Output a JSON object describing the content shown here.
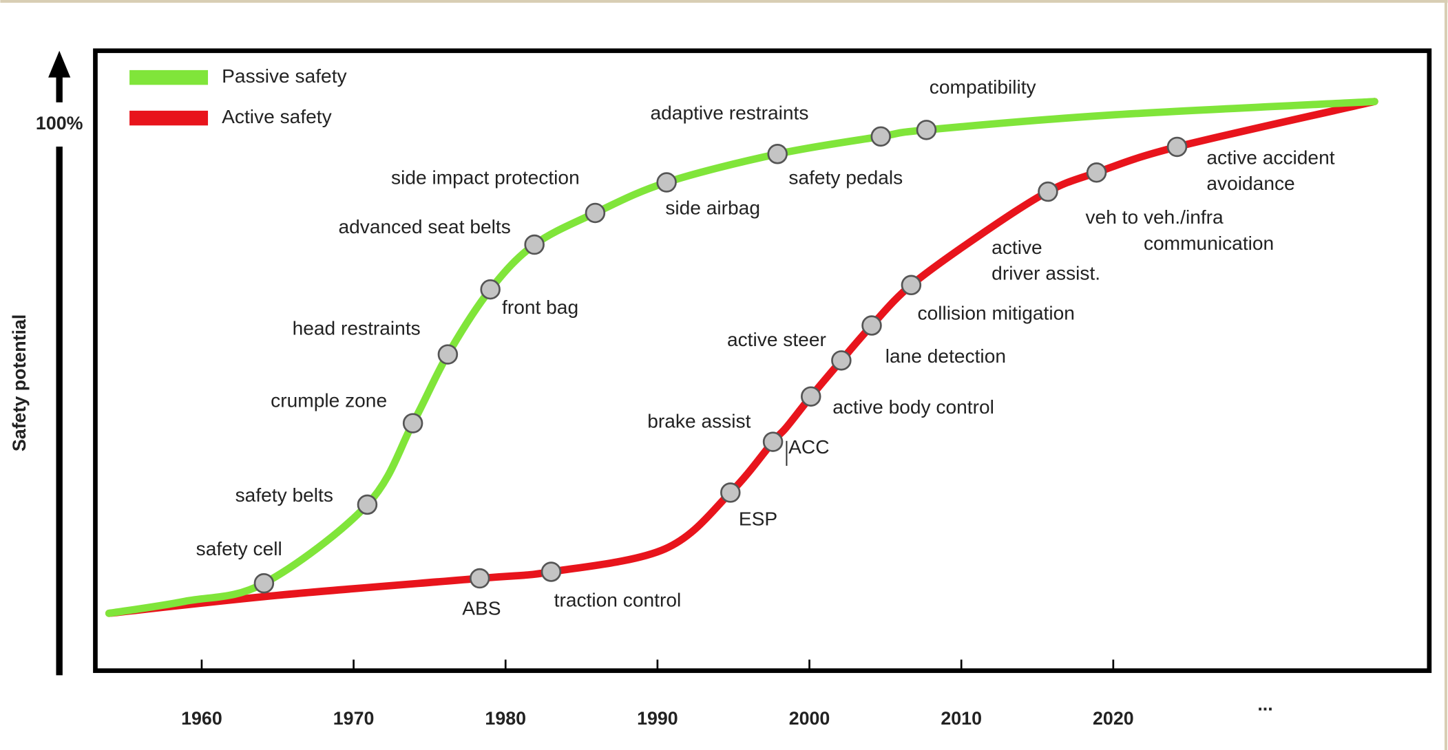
{
  "chart_data": {
    "type": "line",
    "ylabel": "Safety potential",
    "xlim": [
      1953,
      2040.8
    ],
    "xticks": [
      1960,
      1970,
      1980,
      1990,
      2000,
      2010,
      2020,
      {
        "value": 2030,
        "label": "..."
      }
    ],
    "ylim": [
      0,
      113.5
    ],
    "yticks": [
      {
        "value": 100,
        "label": "100%"
      }
    ],
    "legend": "top-left",
    "series": [
      {
        "name": "Passive safety",
        "color": "#80e53a",
        "x": [
          1953.9,
          1958.9,
          1964.1,
          1970.9,
          1973.9,
          1976.2,
          1979.0,
          1981.9,
          1985.9,
          1990.6,
          1997.9,
          2004.7,
          2007.7,
          2019.7,
          2037.2
        ],
        "values": [
          10.5,
          12.7,
          16.0,
          30.4,
          45.3,
          57.9,
          69.8,
          78.0,
          83.8,
          89.4,
          94.6,
          97.8,
          99.0,
          101.7,
          104.2
        ],
        "labels": [
          null,
          null,
          [
            "safety cell"
          ],
          [
            "safety belts"
          ],
          [
            "crumple zone"
          ],
          [
            "head restraints"
          ],
          [
            "front bag"
          ],
          [
            "advanced seat belts"
          ],
          [
            "side impact protection"
          ],
          [
            "side airbag"
          ],
          [
            "adaptive restraints"
          ],
          [
            "safety pedals"
          ],
          [
            "compatibility"
          ],
          null,
          null
        ]
      },
      {
        "name": "Active safety",
        "color": "#e8141c",
        "x": [
          1953.9,
          1965.0,
          1978.3,
          1983.0,
          1990.5,
          1994.8,
          1997.6,
          1998.5,
          2000.1,
          2002.1,
          2004.1,
          2006.7,
          2011.2,
          2015.7,
          2018.9,
          2024.2,
          2037.2
        ],
        "values": [
          10.5,
          13.8,
          16.9,
          18.1,
          22.3,
          32.6,
          41.9,
          44.6,
          50.2,
          56.8,
          63.2,
          70.6,
          79.7,
          87.7,
          91.2,
          95.9,
          104.2
        ],
        "labels": [
          null,
          null,
          [
            "ABS"
          ],
          [
            "traction control"
          ],
          null,
          [
            "ESP"
          ],
          [
            "brake assist"
          ],
          [
            "ACC"
          ],
          [
            "active body control"
          ],
          [
            "lane detection"
          ],
          [
            "active steer"
          ],
          [
            "collision mitigation"
          ],
          null,
          [
            "active",
            "driver assist."
          ],
          [
            "veh to veh./infra",
            "communication"
          ],
          [
            "active accident",
            "avoidance"
          ],
          null
        ]
      }
    ]
  }
}
